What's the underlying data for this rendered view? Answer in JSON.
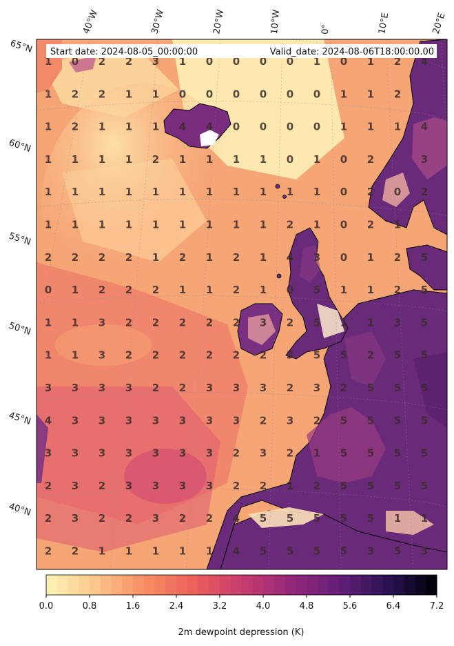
{
  "header": {
    "start_label": "Start date: 2024-08-05_00:00:00",
    "valid_label": "Valid_date: 2024-08-06T18:00:00.00"
  },
  "map": {
    "lon_labels": [
      "40°W",
      "30°W",
      "20°W",
      "10°W",
      "0°",
      "10°E",
      "20°E"
    ],
    "lat_labels": [
      "65°N",
      "60°N",
      "55°N",
      "50°N",
      "45°N",
      "40°N"
    ],
    "land_color": "#6a2a7a",
    "sea_color": "#f4a070"
  },
  "grid_values": [
    [
      1,
      0,
      2,
      2,
      3,
      1,
      0,
      0,
      0,
      0,
      1,
      0,
      1,
      2,
      4
    ],
    [
      1,
      2,
      2,
      1,
      1,
      0,
      0,
      0,
      0,
      0,
      0,
      1,
      1,
      2,
      ""
    ],
    [
      1,
      2,
      1,
      1,
      1,
      4,
      4,
      0,
      0,
      0,
      0,
      1,
      1,
      1,
      4
    ],
    [
      1,
      1,
      1,
      1,
      2,
      1,
      1,
      1,
      1,
      0,
      1,
      0,
      2,
      "",
      3
    ],
    [
      1,
      1,
      1,
      1,
      1,
      1,
      1,
      1,
      1,
      1,
      1,
      0,
      2,
      0,
      2
    ],
    [
      1,
      1,
      1,
      1,
      1,
      1,
      1,
      1,
      1,
      2,
      1,
      0,
      2,
      1,
      ""
    ],
    [
      2,
      2,
      2,
      2,
      1,
      2,
      1,
      2,
      1,
      4,
      3,
      0,
      1,
      2,
      5
    ],
    [
      0,
      1,
      2,
      2,
      2,
      1,
      1,
      2,
      1,
      0,
      5,
      1,
      1,
      2,
      5
    ],
    [
      1,
      1,
      3,
      2,
      2,
      2,
      2,
      2,
      3,
      2,
      5,
      1,
      1,
      3,
      5
    ],
    [
      1,
      1,
      3,
      2,
      2,
      2,
      2,
      2,
      2,
      3,
      5,
      5,
      2,
      5,
      5
    ],
    [
      3,
      3,
      3,
      3,
      2,
      2,
      3,
      3,
      3,
      2,
      3,
      2,
      5,
      5,
      5
    ],
    [
      4,
      3,
      3,
      3,
      3,
      3,
      3,
      3,
      2,
      3,
      2,
      5,
      5,
      5,
      5
    ],
    [
      3,
      3,
      3,
      3,
      3,
      3,
      3,
      2,
      3,
      2,
      1,
      5,
      5,
      5,
      5
    ],
    [
      2,
      3,
      2,
      3,
      3,
      3,
      3,
      2,
      2,
      1,
      2,
      5,
      5,
      5,
      5
    ],
    [
      2,
      3,
      2,
      2,
      3,
      2,
      2,
      4,
      5,
      5,
      5,
      5,
      5,
      1,
      1
    ],
    [
      2,
      2,
      1,
      1,
      1,
      1,
      1,
      4,
      5,
      5,
      5,
      5,
      3,
      5,
      3
    ]
  ],
  "colorbar": {
    "ticks": [
      "0.0",
      "0.8",
      "1.6",
      "2.4",
      "3.2",
      "4.0",
      "4.8",
      "5.6",
      "6.4",
      "7.2"
    ],
    "label": "2m dewpoint depression (K)",
    "min": 0.0,
    "max": 7.2,
    "levels": 36
  }
}
